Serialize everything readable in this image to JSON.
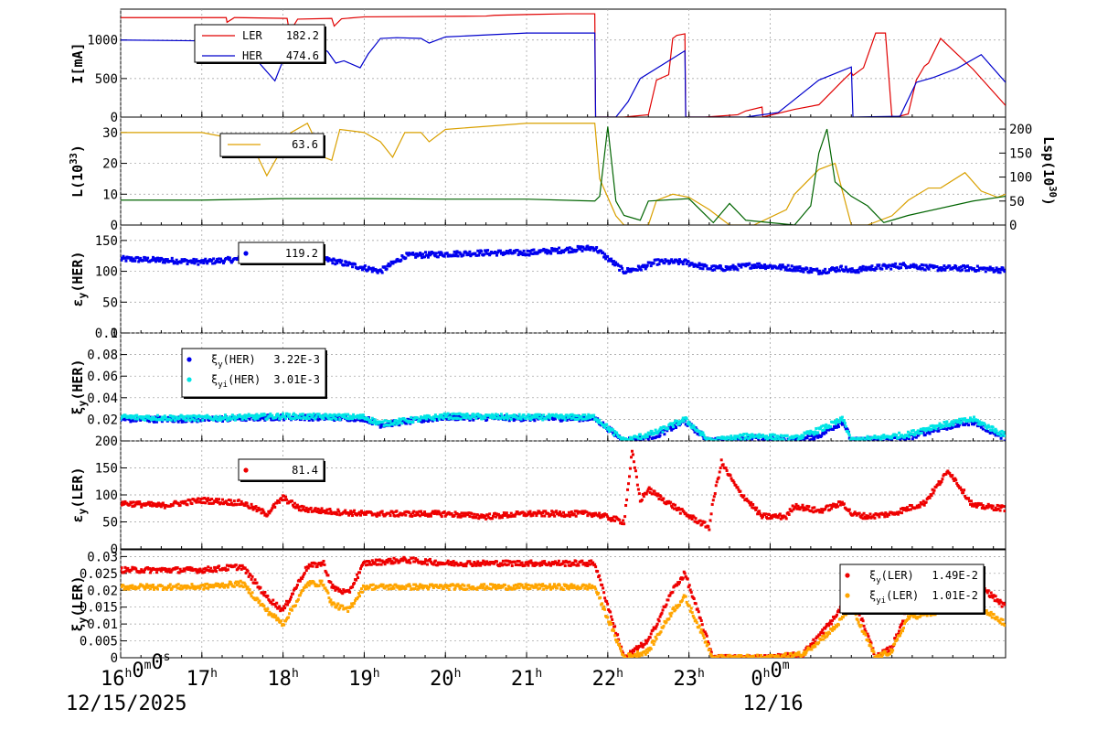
{
  "chart_data": [
    {
      "type": "line",
      "panel": "current",
      "ylabel": "I[mA]",
      "ylim": [
        0,
        1400
      ],
      "yticks": [
        0,
        500,
        1000
      ],
      "grid": true,
      "legend": {
        "placement": "top-left",
        "entries": [
          {
            "name": "LER",
            "value": "182.2",
            "color": "#e00000"
          },
          {
            "name": "HER",
            "value": "474.6",
            "color": "#0000cc"
          }
        ]
      },
      "series": [
        {
          "name": "LER",
          "color": "#e00000",
          "x": [
            0,
            1.3,
            1.31,
            1.4,
            1.44,
            2.05,
            2.08,
            2.18,
            2.6,
            2.63,
            2.72,
            3.0,
            4.5,
            4.6,
            5.0,
            5.5,
            5.84,
            5.85,
            6.2,
            6.5,
            6.6,
            6.75,
            6.8,
            6.85,
            6.95,
            6.96,
            7.2,
            7.6,
            7.7,
            7.9,
            7.91,
            8.3,
            8.6,
            8.9,
            9.0,
            9.02,
            9.15,
            9.3,
            9.42,
            9.5,
            9.55,
            9.7,
            9.8,
            9.9,
            9.95,
            10.1,
            10.5,
            10.9
          ],
          "y": [
            1290,
            1290,
            1230,
            1290,
            1290,
            1280,
            1100,
            1270,
            1280,
            1180,
            1275,
            1300,
            1310,
            1320,
            1330,
            1340,
            1340,
            0,
            0,
            30,
            480,
            550,
            1020,
            1060,
            1080,
            0,
            0,
            30,
            80,
            130,
            0,
            100,
            160,
            480,
            580,
            540,
            640,
            1090,
            1090,
            0,
            0,
            40,
            480,
            660,
            700,
            1020,
            620,
            150
          ]
        },
        {
          "name": "HER",
          "color": "#0000cc",
          "x": [
            0,
            0.9,
            1.5,
            1.9,
            2.1,
            2.3,
            2.55,
            2.65,
            2.75,
            2.95,
            3.05,
            3.2,
            3.4,
            3.7,
            3.8,
            4.0,
            4.4,
            5.0,
            5.84,
            5.85,
            6.1,
            6.25,
            6.4,
            6.95,
            6.96,
            7.7,
            7.9,
            8.1,
            8.6,
            9.0,
            9.02,
            9.6,
            9.8,
            10.0,
            10.3,
            10.6,
            10.9
          ],
          "y": [
            1000,
            990,
            950,
            470,
            1000,
            1000,
            850,
            700,
            730,
            640,
            820,
            1020,
            1030,
            1020,
            960,
            1040,
            1060,
            1090,
            1090,
            0,
            0,
            200,
            500,
            860,
            0,
            0,
            30,
            60,
            480,
            650,
            0,
            10,
            450,
            510,
            630,
            810,
            450
          ]
        }
      ]
    },
    {
      "type": "line",
      "panel": "luminosity",
      "ylabel": "L(10^33)",
      "ylabel_right": "Lsp(10^30)",
      "ylim": [
        0,
        35
      ],
      "yticks": [
        0,
        10,
        20,
        30
      ],
      "ylim_right": [
        0,
        225
      ],
      "yticks_right": [
        0,
        50,
        100,
        150,
        200
      ],
      "grid": true,
      "legend": {
        "placement": "top-left",
        "entries": [
          {
            "name": "",
            "value": "63.6",
            "color": "#e0a000"
          }
        ]
      },
      "series": [
        {
          "name": "L",
          "color": "#d9a000",
          "x": [
            0,
            0.5,
            1.0,
            1.6,
            1.8,
            2.1,
            2.3,
            2.5,
            2.6,
            2.7,
            3.0,
            3.2,
            3.35,
            3.5,
            3.7,
            3.8,
            4.0,
            4.5,
            5.0,
            5.5,
            5.84,
            5.9,
            6.1,
            6.2,
            6.5,
            6.6,
            6.8,
            7.0,
            7.25,
            7.5,
            7.8,
            8.2,
            8.3,
            8.6,
            8.8,
            9.0,
            9.2,
            9.5,
            9.7,
            9.95,
            10.1,
            10.4,
            10.6,
            10.8,
            10.9
          ],
          "y": [
            30,
            30,
            30,
            27,
            16,
            30,
            33,
            22,
            21,
            31,
            30,
            27,
            22,
            30,
            30,
            27,
            31,
            32,
            33,
            33,
            33,
            15,
            3,
            0,
            0,
            8,
            10,
            9,
            5,
            0,
            0,
            5,
            10,
            18,
            20,
            0,
            0,
            3,
            8,
            12,
            12,
            17,
            11,
            9,
            10
          ]
        },
        {
          "name": "Lsp",
          "color": "#006400",
          "x": [
            0,
            1.0,
            2.0,
            3.0,
            4.0,
            5.0,
            5.84,
            5.9,
            6.0,
            6.1,
            6.2,
            6.4,
            6.5,
            7.0,
            7.3,
            7.5,
            7.7,
            8.3,
            8.5,
            8.6,
            8.7,
            8.8,
            9.0,
            9.2,
            9.4,
            9.5,
            9.7,
            10.5,
            10.9
          ],
          "y": [
            52,
            52,
            55,
            55,
            54,
            54,
            50,
            60,
            205,
            50,
            20,
            10,
            50,
            55,
            5,
            45,
            10,
            0,
            40,
            150,
            200,
            90,
            60,
            40,
            5,
            10,
            20,
            50,
            60
          ]
        }
      ]
    },
    {
      "type": "scatter",
      "panel": "emittance-her",
      "ylabel": "εy(HER)",
      "ylim": [
        0,
        175
      ],
      "yticks": [
        0,
        50,
        100,
        150
      ],
      "grid": true,
      "legend": {
        "placement": "top-left",
        "entries": [
          {
            "name": "",
            "value": "119.2",
            "color": "#0000ee"
          }
        ]
      },
      "series": [
        {
          "name": "HER",
          "color": "#0000ee",
          "x": [
            0,
            0.5,
            1.0,
            1.5,
            2.0,
            2.5,
            3.2,
            3.5,
            4.0,
            4.5,
            5.0,
            5.5,
            5.84,
            6.2,
            6.4,
            6.6,
            6.95,
            7.25,
            7.5,
            7.8,
            8.3,
            8.6,
            8.9,
            9.0,
            9.2,
            9.7,
            10.0,
            10.4,
            10.9
          ],
          "y": [
            120,
            118,
            115,
            120,
            117,
            120,
            100,
            125,
            128,
            130,
            130,
            135,
            138,
            100,
            105,
            115,
            115,
            105,
            105,
            110,
            105,
            100,
            105,
            100,
            105,
            110,
            105,
            105,
            102
          ]
        }
      ]
    },
    {
      "type": "scatter",
      "panel": "tune-her",
      "ylabel": "ξy(HER)",
      "ylim": [
        0,
        0.1
      ],
      "yticks": [
        0.02,
        0.04,
        0.06,
        0.08,
        0.1
      ],
      "yticklabels": [
        "0.02",
        "0.04",
        "0.06",
        "0.08",
        "0.1"
      ],
      "grid": true,
      "legend": {
        "placement": "top-left",
        "entries": [
          {
            "name": "ξy(HER)",
            "value": "3.22E-3",
            "color": "#0000ee"
          },
          {
            "name": "ξyi(HER)",
            "value": "3.01E-3",
            "color": "#00e5e5"
          }
        ]
      },
      "series": [
        {
          "name": "ξy(HER)",
          "color": "#0000ee",
          "x": [
            0,
            1.0,
            2.0,
            3.0,
            3.2,
            4.0,
            5.0,
            5.84,
            6.2,
            6.6,
            6.95,
            7.25,
            7.8,
            8.3,
            8.6,
            8.9,
            9.0,
            9.7,
            10.0,
            10.5,
            10.9
          ],
          "y": [
            0.02,
            0.02,
            0.022,
            0.021,
            0.015,
            0.022,
            0.021,
            0.021,
            0.0,
            0.005,
            0.018,
            0.0,
            0.003,
            0.0,
            0.005,
            0.018,
            0.0,
            0.003,
            0.01,
            0.018,
            0.002
          ]
        },
        {
          "name": "ξyi(HER)",
          "color": "#00e5e5",
          "x": [
            0,
            1.0,
            2.0,
            3.0,
            3.2,
            4.0,
            5.0,
            5.84,
            6.2,
            6.6,
            6.95,
            7.25,
            7.8,
            8.3,
            8.6,
            8.9,
            9.0,
            9.7,
            10.0,
            10.5,
            10.9
          ],
          "y": [
            0.022,
            0.021,
            0.023,
            0.022,
            0.016,
            0.023,
            0.022,
            0.022,
            0.0,
            0.008,
            0.02,
            0.0,
            0.005,
            0.002,
            0.01,
            0.02,
            0.0,
            0.006,
            0.013,
            0.02,
            0.005
          ]
        }
      ]
    },
    {
      "type": "scatter",
      "panel": "emittance-ler",
      "ylabel": "εy(LER)",
      "ylim": [
        0,
        200
      ],
      "yticks": [
        0,
        50,
        100,
        150,
        200
      ],
      "grid": true,
      "legend": {
        "placement": "top-left",
        "entries": [
          {
            "name": "",
            "value": "81.4",
            "color": "#ee0000"
          }
        ]
      },
      "series": [
        {
          "name": "LER",
          "color": "#ee0000",
          "x": [
            0,
            0.5,
            1.0,
            1.5,
            1.8,
            2.0,
            2.2,
            2.5,
            3.0,
            3.5,
            4.0,
            4.5,
            5.0,
            5.5,
            5.84,
            6.2,
            6.3,
            6.4,
            6.5,
            6.95,
            7.25,
            7.3,
            7.4,
            7.6,
            7.9,
            8.2,
            8.3,
            8.6,
            8.9,
            9.0,
            9.2,
            9.5,
            9.9,
            10.2,
            10.5,
            10.9
          ],
          "y": [
            85,
            80,
            90,
            85,
            65,
            95,
            75,
            70,
            65,
            65,
            65,
            60,
            65,
            65,
            65,
            50,
            180,
            90,
            110,
            65,
            40,
            90,
            160,
            110,
            60,
            60,
            80,
            70,
            85,
            65,
            60,
            65,
            85,
            145,
            80,
            75
          ]
        }
      ]
    },
    {
      "type": "scatter",
      "panel": "tune-ler",
      "ylabel": "ξy(LER)",
      "ylim": [
        0,
        0.032
      ],
      "yticks": [
        0,
        0.005,
        0.01,
        0.015,
        0.02,
        0.025,
        0.03
      ],
      "yticklabels": [
        "0",
        "0.005",
        "0.01",
        "0.015",
        "0.02",
        "0.025",
        "0.03"
      ],
      "grid": true,
      "legend": {
        "placement": "top-right",
        "entries": [
          {
            "name": "ξy(LER)",
            "value": "1.49E-2",
            "color": "#ee0000"
          },
          {
            "name": "ξyi(LER)",
            "value": "1.01E-2",
            "color": "#ffa500"
          }
        ]
      },
      "series": [
        {
          "name": "ξy(LER)",
          "color": "#ee0000",
          "x": [
            0,
            0.5,
            1.0,
            1.5,
            1.8,
            2.0,
            2.3,
            2.5,
            2.6,
            2.8,
            3.0,
            3.5,
            4.0,
            4.5,
            5.0,
            5.84,
            6.2,
            6.5,
            6.8,
            6.95,
            7.3,
            8.0,
            8.4,
            8.8,
            9.0,
            9.3,
            9.5,
            9.7,
            10.2,
            10.5,
            10.9
          ],
          "y": [
            0.026,
            0.026,
            0.026,
            0.027,
            0.018,
            0.014,
            0.027,
            0.028,
            0.021,
            0.019,
            0.028,
            0.029,
            0.028,
            0.028,
            0.028,
            0.028,
            0.0,
            0.005,
            0.02,
            0.025,
            0.0,
            0.0,
            0.001,
            0.012,
            0.02,
            0.0,
            0.003,
            0.015,
            0.022,
            0.023,
            0.015
          ]
        },
        {
          "name": "ξyi(LER)",
          "color": "#ffa500",
          "x": [
            0,
            0.5,
            1.0,
            1.5,
            1.8,
            2.0,
            2.3,
            2.5,
            2.6,
            2.8,
            3.0,
            3.5,
            4.0,
            4.5,
            5.0,
            5.84,
            6.2,
            6.5,
            6.8,
            6.95,
            7.3,
            8.0,
            8.4,
            8.8,
            9.0,
            9.3,
            9.5,
            9.7,
            10.2,
            10.5,
            10.9
          ],
          "y": [
            0.021,
            0.021,
            0.021,
            0.022,
            0.014,
            0.01,
            0.022,
            0.022,
            0.016,
            0.014,
            0.021,
            0.021,
            0.021,
            0.021,
            0.021,
            0.021,
            0.0,
            0.002,
            0.014,
            0.018,
            0.0,
            0.0,
            0.001,
            0.009,
            0.015,
            0.0,
            0.002,
            0.012,
            0.014,
            0.016,
            0.01
          ]
        }
      ]
    }
  ],
  "xaxis": {
    "xlim": [
      0,
      10.9
    ],
    "ticks": [
      {
        "x": 0,
        "label": "16",
        "unit": "h",
        "extra": [
          {
            "t": "0",
            "u": "m"
          },
          {
            "t": "0",
            "u": "s"
          }
        ]
      },
      {
        "x": 1,
        "label": "17",
        "unit": "h",
        "extra": []
      },
      {
        "x": 2,
        "label": "18",
        "unit": "h",
        "extra": []
      },
      {
        "x": 3,
        "label": "19",
        "unit": "h",
        "extra": []
      },
      {
        "x": 4,
        "label": "20",
        "unit": "h",
        "extra": []
      },
      {
        "x": 5,
        "label": "21",
        "unit": "h",
        "extra": []
      },
      {
        "x": 6,
        "label": "22",
        "unit": "h",
        "extra": []
      },
      {
        "x": 7,
        "label": "23",
        "unit": "h",
        "extra": []
      },
      {
        "x": 8,
        "label": "0",
        "unit": "h",
        "extra": [
          {
            "t": "0",
            "u": "m"
          }
        ]
      }
    ],
    "date_start": "12/15/2025",
    "date_next": "12/16"
  }
}
